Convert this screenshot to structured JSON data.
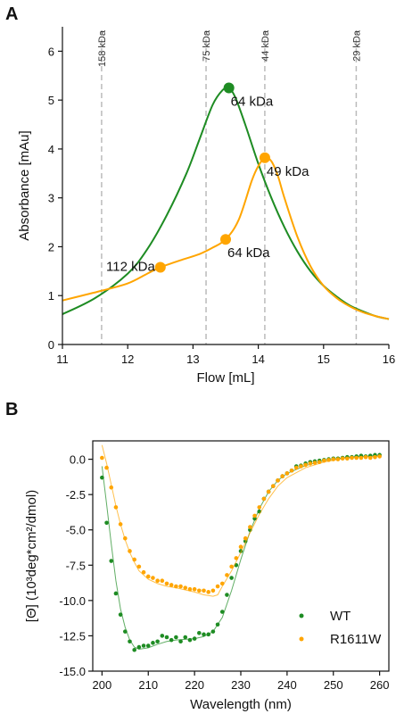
{
  "chart_data": [
    {
      "panel": "A",
      "type": "line",
      "xlabel": "Flow [mL]",
      "ylabel": "Absorbance [mAu]",
      "xlim": [
        11,
        16
      ],
      "ylim": [
        0,
        6.5
      ],
      "xticks": [
        "11",
        "12",
        "13",
        "14",
        "15",
        "16"
      ],
      "yticks": [
        "0",
        "1",
        "2",
        "3",
        "4",
        "5",
        "6"
      ],
      "grid": false,
      "colors": {
        "green": "#1e8c23",
        "orange": "#ffa500"
      },
      "markers": [
        {
          "x": 11.6,
          "label": "158 kDa"
        },
        {
          "x": 13.2,
          "label": "75 kDa"
        },
        {
          "x": 14.1,
          "label": "44 kDa"
        },
        {
          "x": 15.5,
          "label": "29 kDa"
        }
      ],
      "series": [
        {
          "color": "#1e8c23",
          "x": [
            11.0,
            11.5,
            12.0,
            12.3,
            12.6,
            12.9,
            13.1,
            13.3,
            13.45,
            13.55,
            13.65,
            13.8,
            14.0,
            14.2,
            14.4,
            14.6,
            14.8,
            15.0,
            15.2,
            15.4,
            15.6,
            15.8,
            16.0
          ],
          "values": [
            0.62,
            0.95,
            1.45,
            1.95,
            2.65,
            3.5,
            4.2,
            4.9,
            5.2,
            5.25,
            5.05,
            4.5,
            3.7,
            3.0,
            2.4,
            1.9,
            1.5,
            1.2,
            0.98,
            0.8,
            0.68,
            0.58,
            0.52
          ]
        },
        {
          "color": "#ffa500",
          "x": [
            11.0,
            11.3,
            11.6,
            12.0,
            12.3,
            12.5,
            12.8,
            13.1,
            13.3,
            13.5,
            13.7,
            13.9,
            14.0,
            14.1,
            14.2,
            14.3,
            14.4,
            14.6,
            14.8,
            15.0,
            15.2,
            15.4,
            15.6,
            15.8,
            16.0
          ],
          "values": [
            0.9,
            1.0,
            1.1,
            1.25,
            1.45,
            1.58,
            1.72,
            1.85,
            1.98,
            2.15,
            2.55,
            3.35,
            3.65,
            3.82,
            3.75,
            3.45,
            3.0,
            2.2,
            1.6,
            1.2,
            0.95,
            0.78,
            0.66,
            0.58,
            0.52
          ]
        }
      ],
      "annotations": [
        {
          "x": 13.55,
          "y": 5.25,
          "text": "64 kDa",
          "color": "#1e8c23",
          "anchor": "below-right"
        },
        {
          "x": 14.1,
          "y": 3.82,
          "text": "49 kDa",
          "color": "#ffa500",
          "anchor": "below-right"
        },
        {
          "x": 13.5,
          "y": 2.15,
          "text": "64 kDa",
          "color": "#ffa500",
          "anchor": "below-right"
        },
        {
          "x": 12.5,
          "y": 1.58,
          "text": "112 kDa",
          "color": "#ffa500",
          "anchor": "left"
        }
      ]
    },
    {
      "panel": "B",
      "type": "scatter",
      "xlabel": "Wavelength (nm)",
      "ylabel": "[Θ] (10³deg*cm²/dmol)",
      "xlim": [
        198,
        262
      ],
      "ylim": [
        -15.0,
        1.3
      ],
      "xticks": [
        "200",
        "210",
        "220",
        "230",
        "240",
        "250",
        "260"
      ],
      "yticks": [
        "0.0",
        "-2.5",
        "-5.0",
        "-7.5",
        "-10.0",
        "-12.5",
        "-15.0"
      ],
      "grid": false,
      "legend_position": "lower-right",
      "series": [
        {
          "name": "WT",
          "color": "#1e8c23",
          "x": [
            200,
            201,
            202,
            203,
            204,
            205,
            206,
            207,
            208,
            209,
            210,
            211,
            212,
            213,
            214,
            215,
            216,
            217,
            218,
            219,
            220,
            221,
            222,
            223,
            224,
            225,
            226,
            227,
            228,
            229,
            230,
            231,
            232,
            233,
            234,
            235,
            236,
            237,
            238,
            239,
            240,
            241,
            242,
            243,
            244,
            245,
            246,
            247,
            248,
            249,
            250,
            251,
            252,
            253,
            254,
            255,
            256,
            257,
            258,
            259,
            260
          ],
          "values": [
            -1.3,
            -4.5,
            -7.2,
            -9.5,
            -11.0,
            -12.2,
            -12.9,
            -13.5,
            -13.3,
            -13.2,
            -13.2,
            -13.0,
            -12.9,
            -12.5,
            -12.6,
            -12.8,
            -12.6,
            -12.9,
            -12.6,
            -12.8,
            -12.7,
            -12.3,
            -12.4,
            -12.4,
            -12.2,
            -11.7,
            -10.8,
            -9.6,
            -8.4,
            -7.5,
            -6.5,
            -5.8,
            -5.0,
            -4.2,
            -3.7,
            -2.8,
            -2.3,
            -1.9,
            -1.5,
            -1.2,
            -1.0,
            -0.8,
            -0.5,
            -0.45,
            -0.3,
            -0.2,
            -0.15,
            -0.1,
            -0.05,
            0.0,
            0.05,
            0.05,
            0.1,
            0.15,
            0.15,
            0.2,
            0.25,
            0.2,
            0.25,
            0.3,
            0.3
          ],
          "fit": [
            [
              200,
              -0.5
            ],
            [
              201,
              -3.2
            ],
            [
              202,
              -6.0
            ],
            [
              203,
              -8.6
            ],
            [
              204,
              -10.6
            ],
            [
              205,
              -11.9
            ],
            [
              206,
              -12.8
            ],
            [
              207,
              -13.3
            ],
            [
              208,
              -13.45
            ],
            [
              210,
              -13.35
            ],
            [
              212,
              -13.1
            ],
            [
              214,
              -12.9
            ],
            [
              216,
              -12.8
            ],
            [
              218,
              -12.75
            ],
            [
              220,
              -12.7
            ],
            [
              222,
              -12.55
            ],
            [
              224,
              -12.2
            ],
            [
              226,
              -11.2
            ],
            [
              228,
              -9.3
            ],
            [
              230,
              -7.1
            ],
            [
              232,
              -5.1
            ],
            [
              234,
              -3.5
            ],
            [
              236,
              -2.3
            ],
            [
              238,
              -1.5
            ],
            [
              240,
              -1.0
            ],
            [
              244,
              -0.45
            ],
            [
              248,
              -0.1
            ],
            [
              252,
              0.1
            ],
            [
              256,
              0.2
            ],
            [
              260,
              0.25
            ]
          ]
        },
        {
          "name": "R1611W",
          "color": "#ffa500",
          "x": [
            200,
            201,
            202,
            203,
            204,
            205,
            206,
            207,
            208,
            209,
            210,
            211,
            212,
            213,
            214,
            215,
            216,
            217,
            218,
            219,
            220,
            221,
            222,
            223,
            224,
            225,
            226,
            227,
            228,
            229,
            230,
            231,
            232,
            233,
            234,
            235,
            236,
            237,
            238,
            239,
            240,
            241,
            242,
            243,
            244,
            245,
            246,
            247,
            248,
            249,
            250,
            251,
            252,
            253,
            254,
            255,
            256,
            257,
            258,
            259,
            260
          ],
          "values": [
            0.1,
            -0.6,
            -2.0,
            -3.4,
            -4.6,
            -5.6,
            -6.5,
            -7.1,
            -7.6,
            -8.0,
            -8.3,
            -8.4,
            -8.6,
            -8.6,
            -8.8,
            -8.9,
            -9.0,
            -9.0,
            -9.1,
            -9.2,
            -9.2,
            -9.3,
            -9.3,
            -9.4,
            -9.3,
            -9.0,
            -8.8,
            -8.2,
            -7.6,
            -7.0,
            -6.2,
            -5.6,
            -4.8,
            -4.0,
            -3.4,
            -2.8,
            -2.3,
            -1.9,
            -1.5,
            -1.2,
            -1.0,
            -0.8,
            -0.6,
            -0.5,
            -0.4,
            -0.3,
            -0.25,
            -0.2,
            -0.1,
            -0.05,
            0.0,
            0.0,
            0.05,
            0.05,
            0.1,
            0.1,
            0.1,
            0.15,
            0.1,
            0.15,
            0.2
          ],
          "fit": [
            [
              200,
              1.0
            ],
            [
              201,
              -0.3
            ],
            [
              202,
              -1.8
            ],
            [
              203,
              -3.3
            ],
            [
              204,
              -4.6
            ],
            [
              205,
              -5.7
            ],
            [
              206,
              -6.6
            ],
            [
              207,
              -7.3
            ],
            [
              208,
              -7.9
            ],
            [
              210,
              -8.5
            ],
            [
              212,
              -8.8
            ],
            [
              214,
              -9.0
            ],
            [
              216,
              -9.1
            ],
            [
              218,
              -9.25
            ],
            [
              220,
              -9.4
            ],
            [
              222,
              -9.6
            ],
            [
              224,
              -9.7
            ],
            [
              225,
              -9.6
            ],
            [
              226,
              -9.0
            ],
            [
              228,
              -7.9
            ],
            [
              230,
              -6.6
            ],
            [
              232,
              -5.2
            ],
            [
              234,
              -3.9
            ],
            [
              236,
              -2.8
            ],
            [
              238,
              -1.9
            ],
            [
              240,
              -1.3
            ],
            [
              244,
              -0.6
            ],
            [
              248,
              -0.2
            ],
            [
              252,
              0.05
            ],
            [
              256,
              0.15
            ],
            [
              260,
              0.2
            ]
          ]
        }
      ]
    }
  ]
}
